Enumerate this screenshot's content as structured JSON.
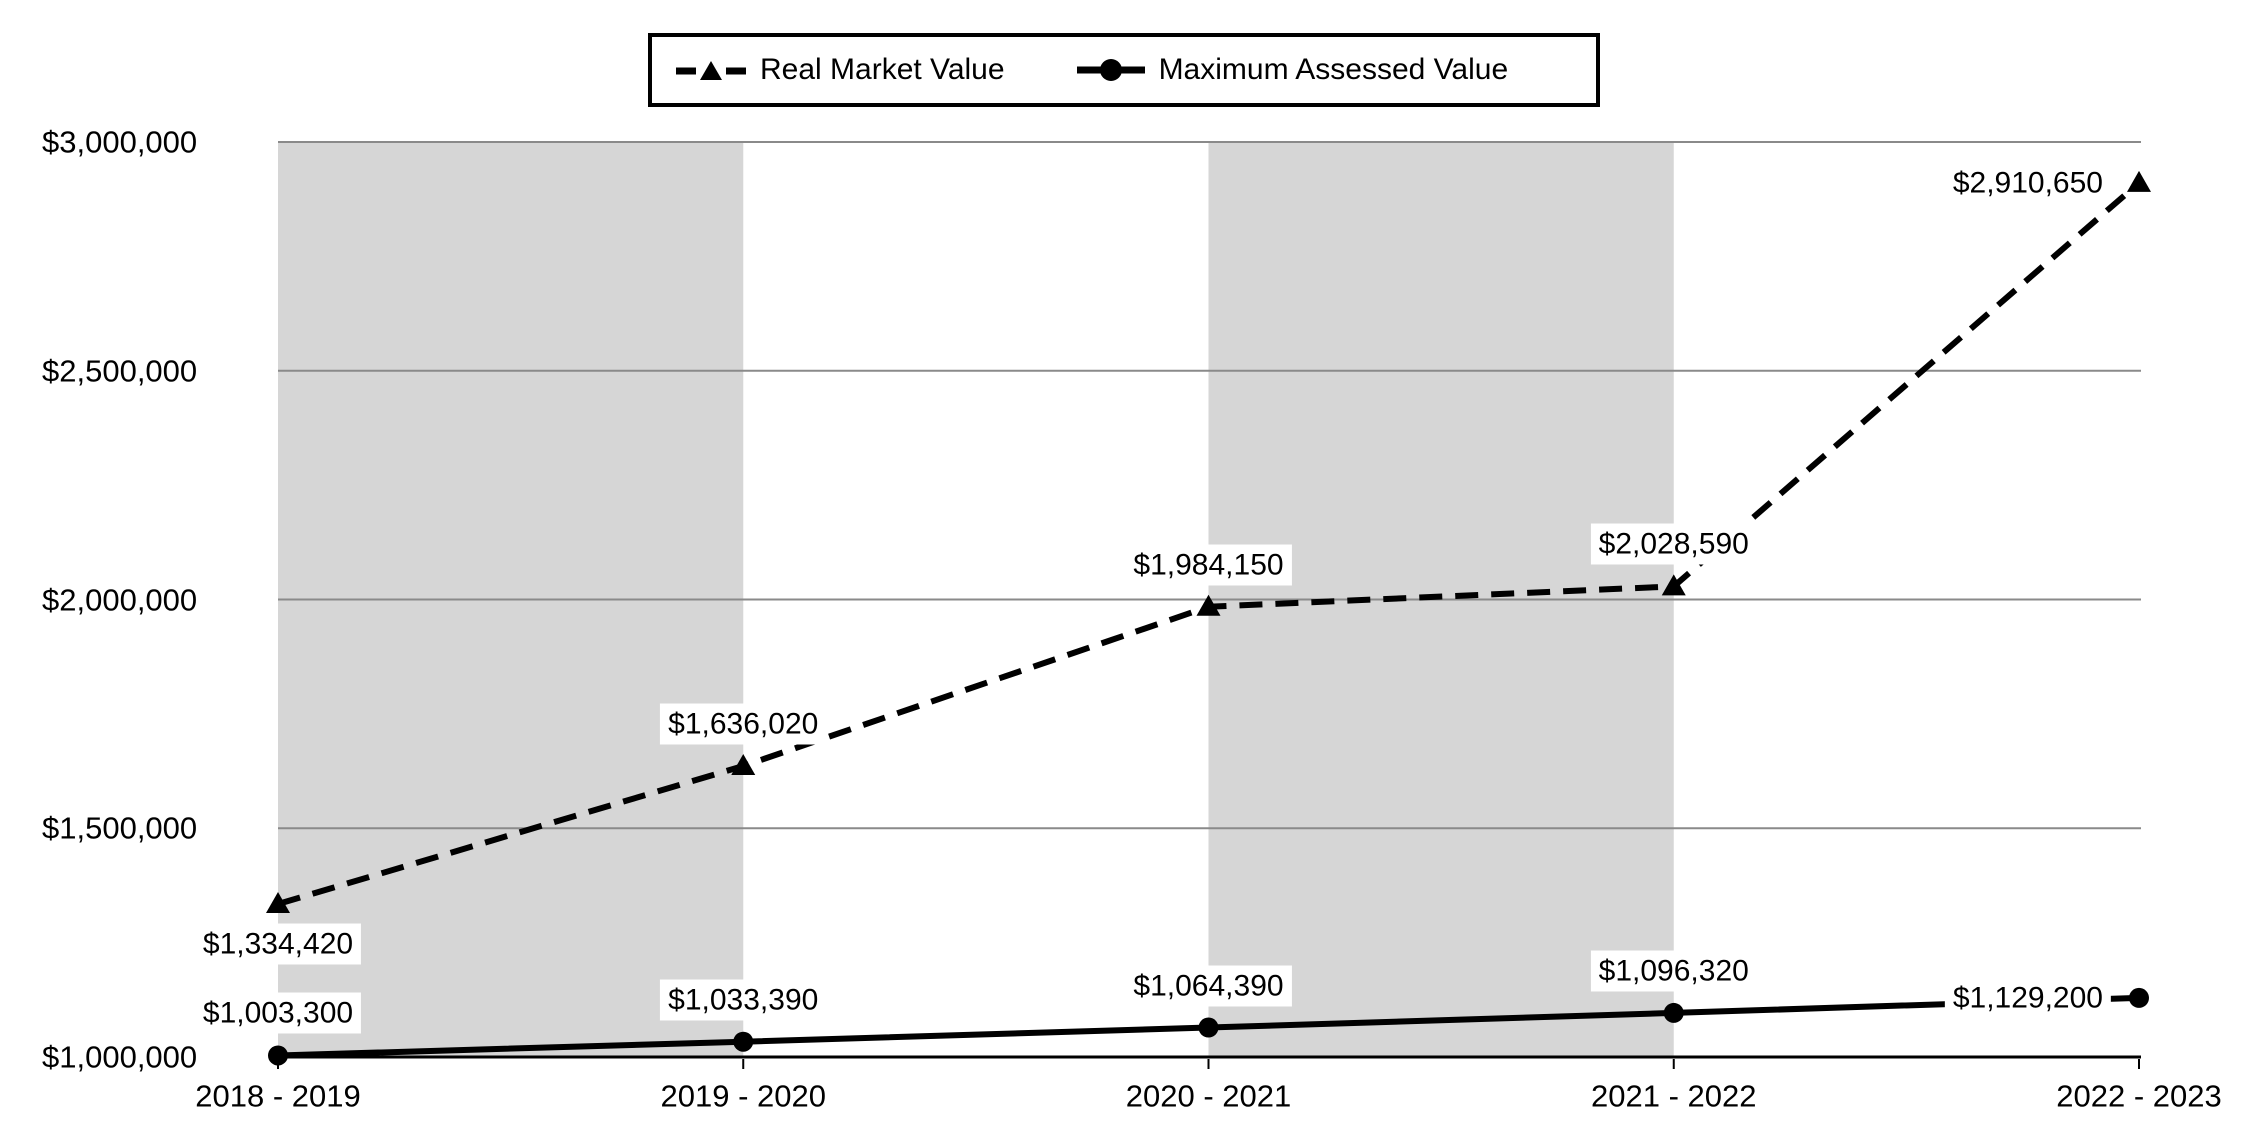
{
  "chart_data": {
    "type": "line",
    "title": "",
    "categories": [
      "2018 - 2019",
      "2019 - 2020",
      "2020 - 2021",
      "2021 - 2022",
      "2022 - 2023"
    ],
    "series": [
      {
        "name": "Real Market Value",
        "line_style": "dashed",
        "marker": "triangle",
        "color": "#000000",
        "values": [
          1334420,
          1636020,
          1984150,
          2028590,
          2910650
        ],
        "data_labels": [
          "$1,334,420",
          "$1,636,020",
          "$1,984,150",
          "$2,028,590",
          "$2,910,650"
        ],
        "label_positions": [
          "below",
          "above",
          "above",
          "above",
          "left"
        ]
      },
      {
        "name": "Maximum Assessed Value",
        "line_style": "solid",
        "marker": "circle",
        "color": "#000000",
        "values": [
          1003300,
          1033390,
          1064390,
          1096320,
          1129200
        ],
        "data_labels": [
          "$1,003,300",
          "$1,033,390",
          "$1,064,390",
          "$1,096,320",
          "$1,129,200"
        ],
        "label_positions": [
          "above",
          "above",
          "above",
          "above",
          "left"
        ]
      }
    ],
    "y_axis": {
      "min": 1000000,
      "max": 3000000,
      "tick_interval": 500000,
      "ticks": [
        {
          "value": 3000000,
          "label": "$3,000,000"
        },
        {
          "value": 2500000,
          "label": "$2,500,000"
        },
        {
          "value": 2000000,
          "label": "$2,000,000"
        },
        {
          "value": 1500000,
          "label": "$1,500,000"
        },
        {
          "value": 1000000,
          "label": "$1,000,000"
        }
      ]
    },
    "legend": {
      "position": "top",
      "entries": [
        "Real Market Value",
        "Maximum Assessed Value"
      ]
    },
    "layout": {
      "grid": true,
      "plot_bands": "alternating gray column bands between category 1-2 and 3-4",
      "band_color": "#d6d6d6",
      "gridline_color": "#8a8a8a",
      "axis_color": "#000000",
      "background": "#ffffff"
    }
  }
}
